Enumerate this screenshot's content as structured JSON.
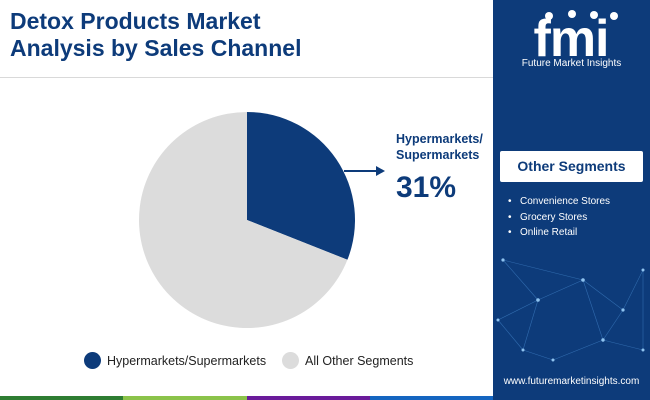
{
  "header": {
    "title_line1": "Detox Products Market",
    "title_line2": "Analysis by Sales Channel"
  },
  "chart_data": {
    "type": "pie",
    "title": "Detox Products Market Analysis by Sales Channel",
    "slices": [
      {
        "label": "Hypermarkets/Supermarkets",
        "value": 31,
        "color": "#0d3b7a"
      },
      {
        "label": "All Other Segments",
        "value": 69,
        "color": "#dcdcdc"
      }
    ],
    "legend_placement": "bottom"
  },
  "callout": {
    "label_line1": "Hypermarkets/",
    "label_line2": "Supermarkets",
    "value": "31%"
  },
  "legend": [
    {
      "label": "Hypermarkets/Supermarkets",
      "color": "#0d3b7a"
    },
    {
      "label": "All Other Segments",
      "color": "#dcdcdc"
    }
  ],
  "sidebar": {
    "logo_text": "fmi",
    "logo_subtitle": "Future Market Insights",
    "other_segments_title": "Other Segments",
    "other_segments": [
      "Convenience Stores",
      "Grocery Stores",
      "Online Retail"
    ],
    "website": "www.futuremarketinsights.com"
  },
  "colors": {
    "brand_navy": "#0d3b7a",
    "footer": [
      "#2e7d32",
      "#8bc34a",
      "#6a1b9a",
      "#1565c0"
    ]
  }
}
